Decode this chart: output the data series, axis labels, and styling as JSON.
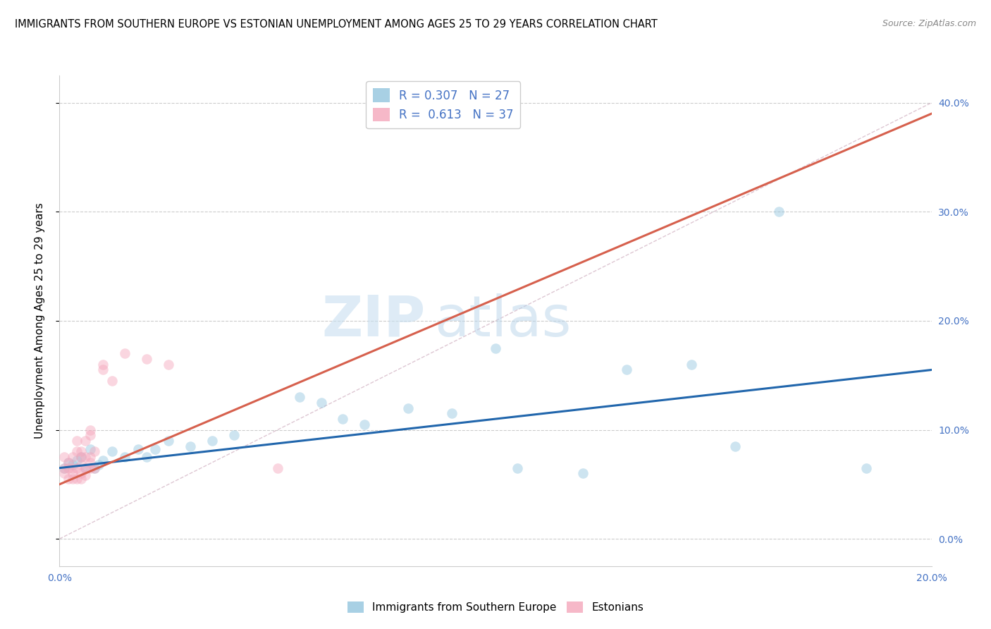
{
  "title": "IMMIGRANTS FROM SOUTHERN EUROPE VS ESTONIAN UNEMPLOYMENT AMONG AGES 25 TO 29 YEARS CORRELATION CHART",
  "source": "Source: ZipAtlas.com",
  "ylabel": "Unemployment Among Ages 25 to 29 years",
  "xlim": [
    0.0,
    0.2
  ],
  "ylim": [
    -0.025,
    0.425
  ],
  "xticks": [
    0.0,
    0.05,
    0.1,
    0.15,
    0.2
  ],
  "yticks": [
    0.0,
    0.1,
    0.2,
    0.3,
    0.4
  ],
  "xticklabels": [
    "0.0%",
    "",
    "",
    "",
    "20.0%"
  ],
  "yticklabels_right": [
    "0.0%",
    "10.0%",
    "20.0%",
    "30.0%",
    "40.0%"
  ],
  "legend_labels_bottom": [
    "Immigrants from Southern Europe",
    "Estonians"
  ],
  "blue_scatter_x": [
    0.001,
    0.002,
    0.003,
    0.004,
    0.005,
    0.006,
    0.007,
    0.008,
    0.009,
    0.01,
    0.012,
    0.015,
    0.018,
    0.02,
    0.022,
    0.025,
    0.03,
    0.035,
    0.04,
    0.055,
    0.06,
    0.065,
    0.07,
    0.08,
    0.09,
    0.1,
    0.105,
    0.12,
    0.13,
    0.145,
    0.155,
    0.165,
    0.185
  ],
  "blue_scatter_y": [
    0.065,
    0.07,
    0.068,
    0.072,
    0.075,
    0.065,
    0.082,
    0.065,
    0.068,
    0.072,
    0.08,
    0.075,
    0.082,
    0.075,
    0.082,
    0.09,
    0.085,
    0.09,
    0.095,
    0.13,
    0.125,
    0.11,
    0.105,
    0.12,
    0.115,
    0.175,
    0.065,
    0.06,
    0.155,
    0.16,
    0.085,
    0.3,
    0.065
  ],
  "pink_scatter_x": [
    0.001,
    0.001,
    0.001,
    0.002,
    0.002,
    0.002,
    0.003,
    0.003,
    0.003,
    0.003,
    0.004,
    0.004,
    0.004,
    0.004,
    0.005,
    0.005,
    0.005,
    0.005,
    0.005,
    0.006,
    0.006,
    0.006,
    0.006,
    0.007,
    0.007,
    0.007,
    0.007,
    0.007,
    0.008,
    0.008,
    0.01,
    0.01,
    0.012,
    0.015,
    0.02,
    0.025,
    0.05
  ],
  "pink_scatter_y": [
    0.06,
    0.065,
    0.075,
    0.055,
    0.065,
    0.07,
    0.055,
    0.06,
    0.065,
    0.075,
    0.055,
    0.065,
    0.08,
    0.09,
    0.055,
    0.06,
    0.068,
    0.075,
    0.08,
    0.058,
    0.065,
    0.075,
    0.09,
    0.065,
    0.07,
    0.075,
    0.095,
    0.1,
    0.065,
    0.08,
    0.155,
    0.16,
    0.145,
    0.17,
    0.165,
    0.16,
    0.065
  ],
  "blue_line_x": [
    0.0,
    0.2
  ],
  "blue_line_y": [
    0.065,
    0.155
  ],
  "pink_line_x": [
    0.0,
    0.2
  ],
  "pink_line_y": [
    0.05,
    0.39
  ],
  "ref_line_x": [
    0.0,
    0.2
  ],
  "ref_line_y": [
    0.0,
    0.4
  ],
  "watermark_zip": "ZIP",
  "watermark_atlas": "atlas",
  "scatter_size": 110,
  "scatter_alpha": 0.45,
  "blue_color": "#92c5de",
  "pink_color": "#f4a6bb",
  "blue_line_color": "#2166ac",
  "pink_line_color": "#d6604d",
  "ref_line_color": "#d0afc0",
  "title_fontsize": 10.5,
  "axis_tick_color": "#4472c4",
  "grid_color": "#cccccc"
}
